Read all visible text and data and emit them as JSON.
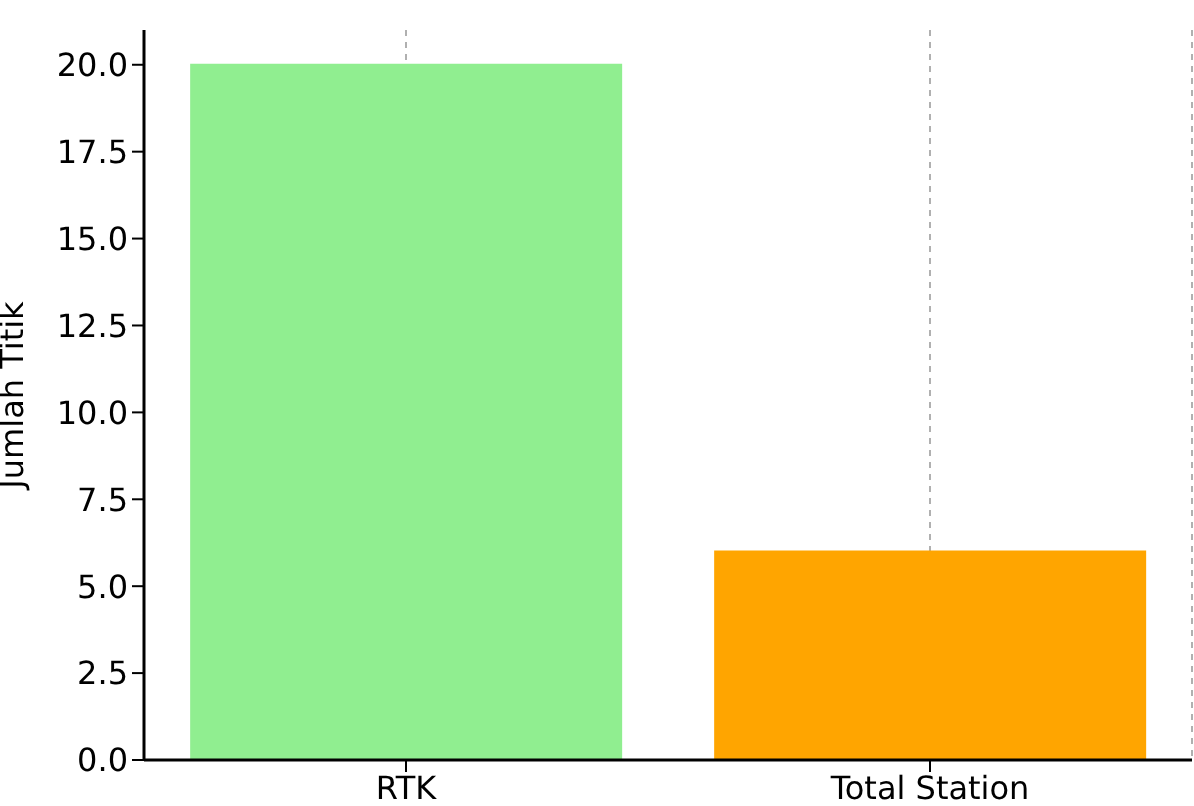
{
  "chart_data": {
    "type": "bar",
    "ylabel": "Jumlah Titik",
    "categories": [
      "RTK",
      "Total Station"
    ],
    "values": [
      20,
      6
    ],
    "colors": [
      "#90ee90",
      "#ffa500"
    ],
    "ylim": [
      0,
      21
    ],
    "yticks": [
      {
        "value": 0,
        "label": "0.0"
      },
      {
        "value": 2.5,
        "label": "2.5"
      },
      {
        "value": 5,
        "label": "5.0"
      },
      {
        "value": 7.5,
        "label": "7.5"
      },
      {
        "value": 10,
        "label": "10.0"
      },
      {
        "value": 12.5,
        "label": "12.5"
      },
      {
        "value": 15,
        "label": "15.0"
      },
      {
        "value": 17.5,
        "label": "17.5"
      },
      {
        "value": 20,
        "label": "20.0"
      }
    ],
    "grid": "x"
  }
}
